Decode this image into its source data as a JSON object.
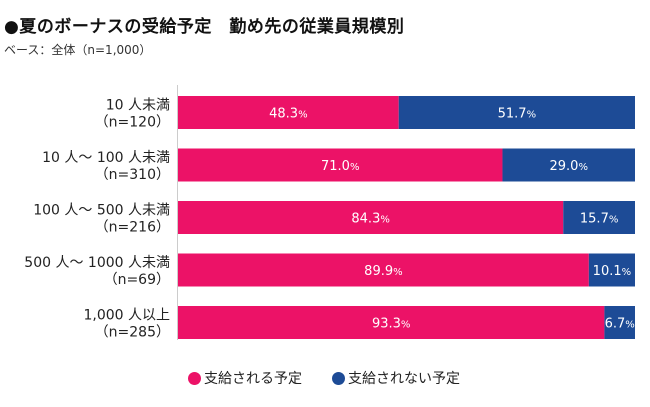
{
  "title": "●夏のボーナスの受給予定　勤め先の従業員規模別",
  "subtitle": "ベース：全体（n=1,000）",
  "colors": {
    "receive": "#ec1267",
    "not_receive": "#1d4b96"
  },
  "chart_data": {
    "type": "bar",
    "orientation": "horizontal",
    "stacked": true,
    "percent_stacked": true,
    "categories": [
      [
        "10 人未満",
        "（n=120）"
      ],
      [
        "10 人〜 100 人未満",
        "（n=310）"
      ],
      [
        "100 人〜 500 人未満",
        "（n=216）"
      ],
      [
        "500 人〜 1000 人未満",
        "（n=69）"
      ],
      [
        "1,000 人以上",
        "（n=285）"
      ]
    ],
    "series": [
      {
        "name": "支給される予定",
        "values": [
          48.3,
          71.0,
          84.3,
          89.9,
          93.3
        ]
      },
      {
        "name": "支給されない予定",
        "values": [
          51.7,
          29.0,
          15.7,
          10.1,
          6.7
        ]
      }
    ],
    "unit": "%",
    "xlim": [
      0,
      100
    ],
    "legend_position": "bottom"
  }
}
